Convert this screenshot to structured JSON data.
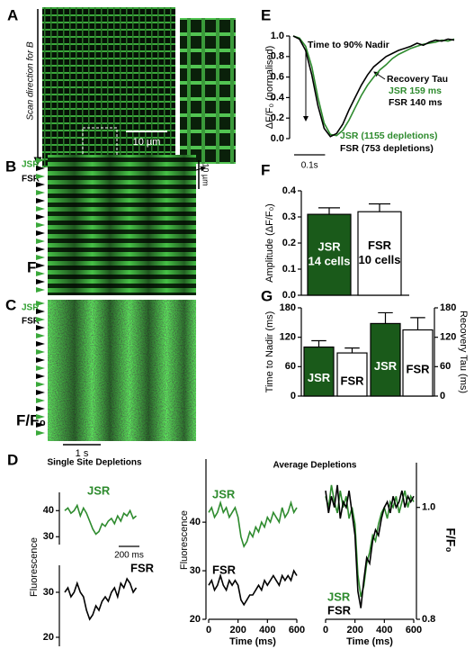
{
  "figure": {
    "panels": {
      "a": "A",
      "b": "B",
      "c": "C",
      "d": "D",
      "e": "E",
      "f": "F",
      "g": "G"
    },
    "image_a": {
      "scan_direction": "Scan direction for B",
      "scale_bar": "10 µm"
    },
    "image_b": {
      "jsr": "JSR",
      "fsr": "FSR",
      "scale_bar": "10 µm",
      "channel": "F"
    },
    "image_c": {
      "jsr": "JSR",
      "fsr": "FSR",
      "channel": "F/F₀",
      "scale_bar": "1 s"
    }
  },
  "chart_data": [
    {
      "type": "line",
      "y_label": "ΔF/F₀ (normalised)",
      "x": [
        0,
        0.02,
        0.04,
        0.06,
        0.08,
        0.1,
        0.12,
        0.14,
        0.16,
        0.18,
        0.2,
        0.22,
        0.24,
        0.26,
        0.28,
        0.3,
        0.32,
        0.34,
        0.36,
        0.38,
        0.4,
        0.42,
        0.44,
        0.46,
        0.48,
        0.5,
        0.52
      ],
      "xlim": [
        0,
        0.52
      ],
      "x_scale_bar": {
        "value": 0.1,
        "label": "0.1s"
      },
      "ylim": [
        0,
        1
      ],
      "yticks": [
        {
          "value": 0,
          "label": "0.0"
        },
        0.2,
        0.4,
        0.6,
        0.8,
        {
          "value": 1,
          "label": "1.0"
        }
      ],
      "series": [
        {
          "color": "#2e8b2e",
          "values": [
            1.0,
            0.98,
            0.9,
            0.7,
            0.4,
            0.15,
            0.04,
            0.03,
            0.08,
            0.18,
            0.3,
            0.42,
            0.52,
            0.6,
            0.67,
            0.72,
            0.78,
            0.82,
            0.85,
            0.88,
            0.9,
            0.92,
            0.93,
            0.94,
            0.96,
            0.95,
            0.97
          ]
        },
        {
          "color": "#000000",
          "values": [
            1.0,
            0.97,
            0.86,
            0.62,
            0.32,
            0.1,
            0.02,
            0.05,
            0.14,
            0.28,
            0.4,
            0.52,
            0.62,
            0.7,
            0.75,
            0.8,
            0.83,
            0.86,
            0.88,
            0.9,
            0.93,
            0.91,
            0.94,
            0.96,
            0.95,
            0.97,
            0.96
          ]
        }
      ],
      "annotations": {
        "nadir": "Time to 90% Nadir",
        "recovery": "Recovery Tau",
        "jsr_tau": "JSR 159 ms",
        "fsr_tau": "FSR 140 ms",
        "jsr_count": "JSR (1155 depletions)",
        "fsr_count": "FSR (753 depletions)"
      }
    },
    {
      "type": "bar",
      "y_label": "Amplitude (ΔF/F₀)",
      "categories": [
        "JSR",
        "FSR"
      ],
      "bar_notes": [
        "14 cells",
        "10 cells"
      ],
      "values": [
        0.31,
        0.32
      ],
      "errors": [
        0.025,
        0.03
      ],
      "colors": [
        "#1a5a1a",
        "#ffffff"
      ],
      "ylim": [
        0,
        0.4
      ],
      "yticks": [
        {
          "value": 0,
          "label": "0.0"
        },
        0.1,
        0.2,
        0.3,
        0.4
      ]
    },
    {
      "type": "bar",
      "y_label": "Time to Nadir (ms)",
      "y2_label": "Recovery Tau (ms)",
      "categories": [
        "JSR",
        "FSR",
        "JSR",
        "FSR"
      ],
      "values": [
        100,
        88,
        148,
        135
      ],
      "errors": [
        13,
        10,
        22,
        25
      ],
      "axes": [
        "y",
        "y",
        "y2",
        "y2"
      ],
      "colors": [
        "#1a5a1a",
        "#ffffff",
        "#1a5a1a",
        "#ffffff"
      ],
      "ylim": [
        0,
        180
      ],
      "yticks": [
        0,
        60,
        120,
        180
      ],
      "y2lim": [
        0,
        180
      ],
      "y2ticks": [
        0,
        60,
        120,
        180
      ]
    },
    {
      "type": "line",
      "title": "Single Site Depletions",
      "y_label": "Fluorescence",
      "x": [
        0,
        30,
        60,
        90,
        120,
        150,
        180,
        210,
        240,
        270,
        300,
        330,
        360,
        390,
        420,
        450,
        480,
        510,
        540,
        570,
        600,
        630,
        660,
        690
      ],
      "xlim": [
        0,
        720
      ],
      "x_scale_bar": {
        "value": 200,
        "label": "200 ms"
      },
      "panels": [
        {
          "ylim": [
            27,
            47
          ],
          "yticks": [
            30,
            40
          ],
          "series": [
            {
              "name": "JSR",
              "color": "#2e8b2e",
              "values": [
                40,
                41,
                39,
                40,
                42,
                38,
                41,
                39,
                36,
                33,
                31,
                32,
                35,
                34,
                36,
                37,
                35,
                38,
                36,
                39,
                38,
                40,
                37,
                38
              ]
            }
          ]
        },
        {
          "ylim": [
            18,
            36
          ],
          "yticks": [
            20,
            30
          ],
          "series": [
            {
              "name": "FSR",
              "color": "#000000",
              "values": [
                30,
                31,
                29,
                30,
                32,
                30,
                29,
                26,
                24,
                25,
                27,
                26,
                28,
                29,
                28,
                30,
                31,
                29,
                32,
                31,
                33,
                32,
                30,
                31
              ]
            }
          ]
        }
      ]
    },
    {
      "type": "line",
      "title": "Average Depletions",
      "x_label": "Time (ms)",
      "y_label": "Fluorescence",
      "x": [
        0,
        20,
        40,
        60,
        80,
        100,
        120,
        140,
        160,
        180,
        200,
        220,
        240,
        260,
        280,
        300,
        320,
        340,
        360,
        380,
        400,
        420,
        440,
        460,
        480,
        500,
        520,
        540,
        560,
        580,
        600
      ],
      "xlim": [
        0,
        600
      ],
      "xticks": [
        0,
        200,
        400,
        600
      ],
      "ylim": [
        20,
        53
      ],
      "yticks": [
        20,
        30,
        40
      ],
      "series": [
        {
          "name": "JSR",
          "color": "#2e8b2e",
          "values": [
            42,
            43,
            41,
            42,
            44,
            42,
            43,
            41,
            42,
            43,
            41,
            37,
            35,
            36,
            38,
            37,
            39,
            38,
            40,
            39,
            41,
            40,
            42,
            41,
            40,
            43,
            41,
            42,
            44,
            42,
            43
          ]
        },
        {
          "name": "FSR",
          "color": "#000000",
          "values": [
            27,
            28,
            26,
            27,
            29,
            27,
            26,
            28,
            27,
            28,
            27,
            24,
            23,
            24,
            25,
            25,
            26,
            27,
            26,
            28,
            27,
            28,
            29,
            28,
            27,
            29,
            28,
            29,
            28,
            30,
            29
          ]
        }
      ]
    },
    {
      "type": "line",
      "x_label": "Time (ms)",
      "y2_label": "F/F₀",
      "x": [
        0,
        20,
        40,
        60,
        80,
        100,
        120,
        140,
        160,
        180,
        200,
        220,
        240,
        260,
        280,
        300,
        320,
        340,
        360,
        380,
        400,
        420,
        440,
        460,
        480,
        500,
        520,
        540,
        560,
        580,
        600
      ],
      "xlim": [
        0,
        600
      ],
      "xticks": [
        0,
        200,
        400,
        600
      ],
      "y2lim": [
        0.8,
        1.08
      ],
      "y2ticks": [
        0.8,
        {
          "value": 1,
          "label": "1.0"
        }
      ],
      "series": [
        {
          "name": "JSR",
          "color": "#2e8b2e",
          "axis": "y2",
          "values": [
            1.02,
            1.0,
            1.04,
            1.01,
            0.99,
            1.03,
            1.0,
            1.02,
            0.98,
            1.0,
            0.97,
            0.88,
            0.84,
            0.86,
            0.9,
            0.92,
            0.95,
            0.94,
            0.97,
            0.99,
            1.0,
            0.98,
            1.01,
            1.0,
            1.02,
            0.99,
            1.01,
            1.03,
            1.0,
            1.02,
            1.01
          ]
        },
        {
          "name": "FSR",
          "color": "#000000",
          "axis": "y2",
          "values": [
            1.03,
            0.99,
            1.02,
            1.0,
            1.04,
            0.98,
            1.01,
            1.0,
            1.03,
            0.99,
            0.95,
            0.85,
            0.82,
            0.87,
            0.91,
            0.9,
            0.94,
            0.96,
            0.95,
            0.98,
            1.0,
            1.01,
            0.99,
            1.02,
            1.0,
            1.01,
            1.03,
            1.0,
            1.02,
            1.01,
            1.02
          ]
        }
      ]
    }
  ]
}
